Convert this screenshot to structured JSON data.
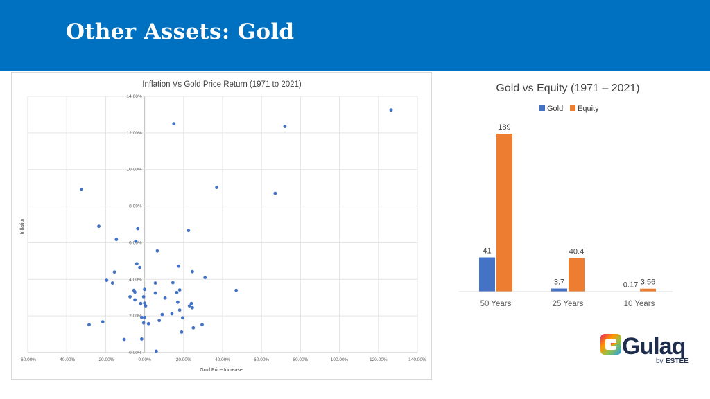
{
  "header": {
    "title": "Other Assets: Gold"
  },
  "colors": {
    "header_bg": "#0070c0",
    "gold": "#4472c4",
    "equity": "#ed7d31",
    "scatter_point": "#4472c4"
  },
  "chart_data": [
    {
      "type": "scatter",
      "title": "Inflation Vs Gold Price Return (1971 to 2021)",
      "xlabel": "Gold Price Increase",
      "ylabel": "Inflation",
      "xlim": [
        -0.6,
        1.4
      ],
      "ylim": [
        0,
        0.14
      ],
      "x_ticks": [
        "-60.00%",
        "-40.00%",
        "-20.00%",
        "0.00%",
        "20.00%",
        "40.00%",
        "60.00%",
        "80.00%",
        "100.00%",
        "120.00%",
        "140.00%"
      ],
      "y_ticks": [
        "0.00%",
        "2.00%",
        "4.00%",
        "6.00%",
        "8.00%",
        "10.00%",
        "12.00%",
        "14.00%"
      ],
      "grid": true,
      "points": [
        {
          "x": 1.265,
          "y": 0.1325
        },
        {
          "x": 0.15,
          "y": 0.125
        },
        {
          "x": 0.72,
          "y": 0.1235
        },
        {
          "x": -0.325,
          "y": 0.089
        },
        {
          "x": 0.37,
          "y": 0.0902
        },
        {
          "x": 0.67,
          "y": 0.087
        },
        {
          "x": -0.235,
          "y": 0.069
        },
        {
          "x": -0.035,
          "y": 0.0677
        },
        {
          "x": 0.225,
          "y": 0.0667
        },
        {
          "x": -0.145,
          "y": 0.0618
        },
        {
          "x": -0.045,
          "y": 0.0608
        },
        {
          "x": 0.065,
          "y": 0.0555
        },
        {
          "x": -0.04,
          "y": 0.0485
        },
        {
          "x": -0.025,
          "y": 0.0465
        },
        {
          "x": 0.175,
          "y": 0.0472
        },
        {
          "x": -0.155,
          "y": 0.044
        },
        {
          "x": 0.245,
          "y": 0.0442
        },
        {
          "x": 0.31,
          "y": 0.041
        },
        {
          "x": -0.195,
          "y": 0.0395
        },
        {
          "x": -0.165,
          "y": 0.038
        },
        {
          "x": 0.055,
          "y": 0.038
        },
        {
          "x": 0.145,
          "y": 0.0382
        },
        {
          "x": -0.055,
          "y": 0.034
        },
        {
          "x": 0.0,
          "y": 0.0345
        },
        {
          "x": -0.05,
          "y": 0.033
        },
        {
          "x": 0.055,
          "y": 0.0325
        },
        {
          "x": 0.165,
          "y": 0.0328
        },
        {
          "x": 0.18,
          "y": 0.0342
        },
        {
          "x": 0.47,
          "y": 0.034
        },
        {
          "x": -0.075,
          "y": 0.0305
        },
        {
          "x": -0.005,
          "y": 0.0305
        },
        {
          "x": -0.05,
          "y": 0.0288
        },
        {
          "x": 0.105,
          "y": 0.0298
        },
        {
          "x": -0.02,
          "y": 0.0268
        },
        {
          "x": 0.0,
          "y": 0.027
        },
        {
          "x": 0.005,
          "y": 0.0255
        },
        {
          "x": 0.17,
          "y": 0.0275
        },
        {
          "x": 0.24,
          "y": 0.0268
        },
        {
          "x": 0.23,
          "y": 0.0255
        },
        {
          "x": 0.245,
          "y": 0.0245
        },
        {
          "x": 0.18,
          "y": 0.0232
        },
        {
          "x": 0.14,
          "y": 0.0212
        },
        {
          "x": 0.09,
          "y": 0.0208
        },
        {
          "x": -0.015,
          "y": 0.0192
        },
        {
          "x": 0.0,
          "y": 0.0192
        },
        {
          "x": 0.195,
          "y": 0.019
        },
        {
          "x": -0.005,
          "y": 0.0162
        },
        {
          "x": 0.02,
          "y": 0.0158
        },
        {
          "x": 0.075,
          "y": 0.0175
        },
        {
          "x": -0.215,
          "y": 0.0168
        },
        {
          "x": -0.285,
          "y": 0.0152
        },
        {
          "x": 0.295,
          "y": 0.0152
        },
        {
          "x": 0.25,
          "y": 0.0135
        },
        {
          "x": 0.19,
          "y": 0.0112
        },
        {
          "x": -0.105,
          "y": 0.0072
        },
        {
          "x": -0.015,
          "y": 0.0074
        },
        {
          "x": 0.06,
          "y": 0.0008
        }
      ]
    },
    {
      "type": "bar",
      "title": "Gold vs Equity (1971 – 2021)",
      "categories": [
        "50 Years",
        "25 Years",
        "10 Years"
      ],
      "series": [
        {
          "name": "Gold",
          "values": [
            41,
            3.7,
            0.17
          ],
          "labels": [
            "41",
            "3.7",
            "0.17"
          ]
        },
        {
          "name": "Equity",
          "values": [
            189,
            40.4,
            3.56
          ],
          "labels": [
            "189",
            "40.4",
            "3.56"
          ]
        }
      ],
      "legend": "top",
      "grid": false
    }
  ],
  "logo": {
    "brand": "Gulaq",
    "by": "by",
    "company": "ESTEE"
  }
}
